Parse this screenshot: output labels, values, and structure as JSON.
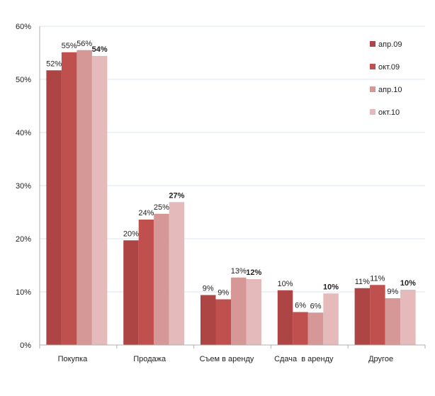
{
  "chart_data": {
    "type": "bar",
    "categories": [
      "Покупка",
      "Продажа",
      "Съем в аренду",
      "Сдача  в аренду",
      "Другое"
    ],
    "series": [
      {
        "name": "апр.09",
        "color": "#ad4544",
        "values": [
          51.7,
          19.7,
          9.4,
          10.3,
          10.7
        ],
        "labels": [
          "52%",
          "20%",
          "9%",
          "10%",
          "11%"
        ],
        "bold": false
      },
      {
        "name": "окт.09",
        "color": "#c0504d",
        "values": [
          55.1,
          23.6,
          8.6,
          6.2,
          11.3
        ],
        "labels": [
          "55%",
          "24%",
          "9%",
          "6%",
          "11%"
        ],
        "bold": false
      },
      {
        "name": "апр.10",
        "color": "#d69896",
        "values": [
          55.5,
          24.7,
          12.7,
          6.1,
          8.8
        ],
        "labels": [
          "56%",
          "25%",
          "13%",
          "6%",
          "9%"
        ],
        "bold": false
      },
      {
        "name": "окт.10",
        "color": "#e4bbba",
        "values": [
          54.4,
          26.9,
          12.4,
          9.7,
          10.4
        ],
        "labels": [
          "54%",
          "27%",
          "12%",
          "10%",
          "10%"
        ],
        "bold": true
      }
    ],
    "ylim": [
      0,
      60
    ],
    "yticks": [
      "0%",
      "10%",
      "20%",
      "30%",
      "40%",
      "50%",
      "60%"
    ],
    "ytick_values": [
      0,
      10,
      20,
      30,
      40,
      50,
      60
    ],
    "grid": true,
    "legend": "right",
    "colors": {
      "grid": "#dbe5f1",
      "axis": "#b0b0b0"
    }
  }
}
